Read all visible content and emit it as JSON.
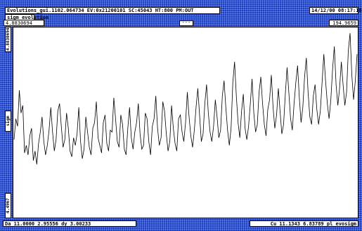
{
  "window": {
    "title": "Evolutions_gui.1102.064734  EV:0x21200101  SC:45043  HT:800  PM:OUT",
    "datetime": "14/12/00 08:17:18"
  },
  "plot": {
    "label": "sigm_evolution",
    "ymax_readout": "4.8830694",
    "center_indicator": "---",
    "right_readout": "194.9659",
    "y_axis_top": "4.8830694",
    "y_axis_mid": "sigm",
    "y_axis_bottom": "4.4967"
  },
  "status": {
    "left": "Da 11.0000 2.95556 dy 3.00233",
    "right": "Cu 11.1343 6.83789 pl_evosigm"
  },
  "chart_data": {
    "type": "line",
    "title": "",
    "xlabel": "",
    "ylabel": "",
    "xlim": [
      0,
      194.9659
    ],
    "ylim": [
      0,
      1
    ],
    "grid": false,
    "series": [
      {
        "values": [
          0.41,
          0.52,
          0.48,
          0.67,
          0.55,
          0.59,
          0.34,
          0.38,
          0.33,
          0.43,
          0.47,
          0.3,
          0.35,
          0.28,
          0.39,
          0.45,
          0.53,
          0.4,
          0.33,
          0.38,
          0.46,
          0.58,
          0.45,
          0.35,
          0.41,
          0.56,
          0.6,
          0.48,
          0.37,
          0.41,
          0.55,
          0.47,
          0.35,
          0.32,
          0.42,
          0.38,
          0.44,
          0.58,
          0.4,
          0.31,
          0.36,
          0.53,
          0.45,
          0.37,
          0.33,
          0.47,
          0.5,
          0.61,
          0.42,
          0.38,
          0.34,
          0.5,
          0.54,
          0.39,
          0.35,
          0.46,
          0.45,
          0.63,
          0.52,
          0.4,
          0.37,
          0.54,
          0.49,
          0.36,
          0.33,
          0.47,
          0.58,
          0.42,
          0.36,
          0.45,
          0.5,
          0.6,
          0.44,
          0.36,
          0.38,
          0.55,
          0.52,
          0.4,
          0.33,
          0.48,
          0.52,
          0.64,
          0.47,
          0.38,
          0.42,
          0.61,
          0.56,
          0.44,
          0.35,
          0.4,
          0.59,
          0.47,
          0.39,
          0.35,
          0.52,
          0.54,
          0.45,
          0.4,
          0.5,
          0.66,
          0.53,
          0.43,
          0.37,
          0.46,
          0.58,
          0.68,
          0.54,
          0.4,
          0.44,
          0.6,
          0.7,
          0.55,
          0.45,
          0.4,
          0.48,
          0.62,
          0.53,
          0.42,
          0.46,
          0.64,
          0.72,
          0.58,
          0.46,
          0.38,
          0.47,
          0.71,
          0.82,
          0.64,
          0.5,
          0.42,
          0.56,
          0.65,
          0.47,
          0.41,
          0.48,
          0.6,
          0.73,
          0.55,
          0.45,
          0.49,
          0.66,
          0.74,
          0.6,
          0.49,
          0.43,
          0.57,
          0.62,
          0.75,
          0.58,
          0.47,
          0.54,
          0.68,
          0.56,
          0.44,
          0.49,
          0.65,
          0.79,
          0.66,
          0.52,
          0.46,
          0.6,
          0.71,
          0.8,
          0.63,
          0.5,
          0.58,
          0.74,
          0.84,
          0.66,
          0.53,
          0.49,
          0.64,
          0.7,
          0.57,
          0.49,
          0.56,
          0.71,
          0.86,
          0.72,
          0.6,
          0.52,
          0.62,
          0.78,
          0.9,
          0.7,
          0.59,
          0.68,
          0.82,
          0.7,
          0.59,
          0.66,
          0.88,
          0.97,
          0.75,
          0.62,
          0.72,
          0.86
        ]
      }
    ]
  }
}
